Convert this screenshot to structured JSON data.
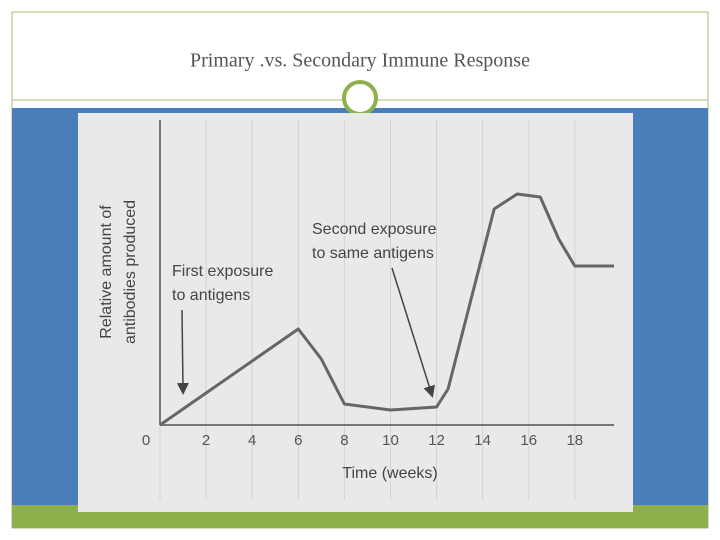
{
  "slide_title": "Primary .vs. Secondary Immune Response",
  "chart_data": {
    "type": "line",
    "xlabel": "Time (weeks)",
    "ylabel": [
      "Relative amount of",
      "antibodies produced"
    ],
    "x": [
      0,
      6,
      7,
      8,
      10,
      12,
      12.5,
      13.5,
      14.5,
      15.5,
      16.5,
      17.3,
      18,
      19.7
    ],
    "series": [
      {
        "color": "#666666",
        "values": [
          0,
          3.2,
          2.2,
          0.7,
          0.5,
          0.6,
          1.2,
          4.2,
          7.2,
          7.7,
          7.6,
          6.2,
          5.3,
          5.3
        ]
      }
    ],
    "xlim": [
      0,
      19.7
    ],
    "ylim": [
      0,
      10
    ],
    "xticks": [
      0,
      2,
      4,
      6,
      8,
      10,
      12,
      14,
      16,
      18
    ],
    "grid": true,
    "annotations": [
      {
        "lines": [
          "First exposure",
          "to antigens"
        ],
        "x": 1,
        "y": 1.1
      },
      {
        "lines": [
          "Second exposure",
          "to same antigens"
        ],
        "x": 11.8,
        "y": 1.0
      }
    ]
  }
}
